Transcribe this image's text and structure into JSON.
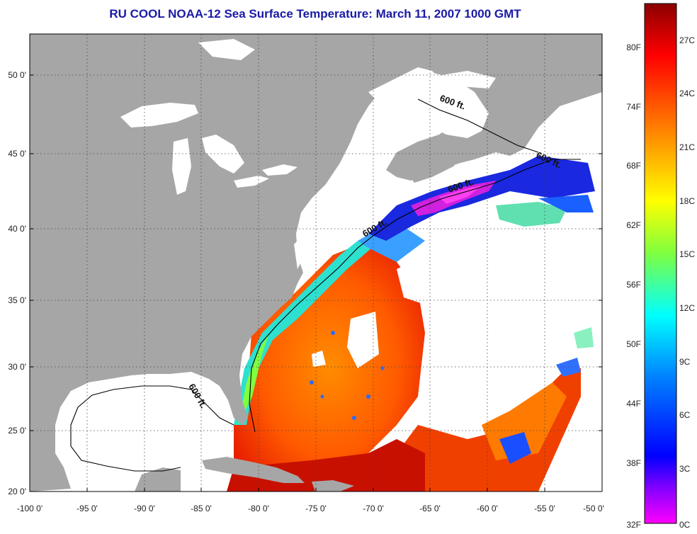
{
  "title": "RU COOL  NOAA-12  Sea Surface Temperature:  March 11, 2007 1000 GMT",
  "map": {
    "lon_range": [
      -100,
      -50
    ],
    "lat_range": [
      20,
      52.5
    ],
    "x_ticks": [
      "-100 0'",
      "-95 0'",
      "-90 0'",
      "-85 0'",
      "-80 0'",
      "-75 0'",
      "-70 0'",
      "-65 0'",
      "-60 0'",
      "-55 0'",
      "-50 0'"
    ],
    "y_ticks": [
      "50 0'",
      "45 0'",
      "40 0'",
      "35 0'",
      "30 0'",
      "25 0'",
      "20 0'"
    ],
    "grid": "dotted",
    "land_color": "#a6a6a6",
    "no_data_color": "#ffffff",
    "depth_contour_labels": [
      "600 ft.",
      "600 ft.",
      "600 ft.",
      "600 ft.",
      "600 ft."
    ]
  },
  "colorbar": {
    "fahrenheit_labels": [
      "80F",
      "74F",
      "68F",
      "62F",
      "56F",
      "50F",
      "44F",
      "38F",
      "32F"
    ],
    "celsius_labels": [
      "27C",
      "24C",
      "21C",
      "18C",
      "15C",
      "12C",
      "9C",
      "6C",
      "3C",
      "0C"
    ],
    "colors_top_to_bottom": [
      "#8b0000",
      "#ff0000",
      "#ff7f00",
      "#ffff00",
      "#7fff3f",
      "#00ffff",
      "#0080ff",
      "#0000ff",
      "#7f00ff",
      "#ff00ff"
    ]
  }
}
